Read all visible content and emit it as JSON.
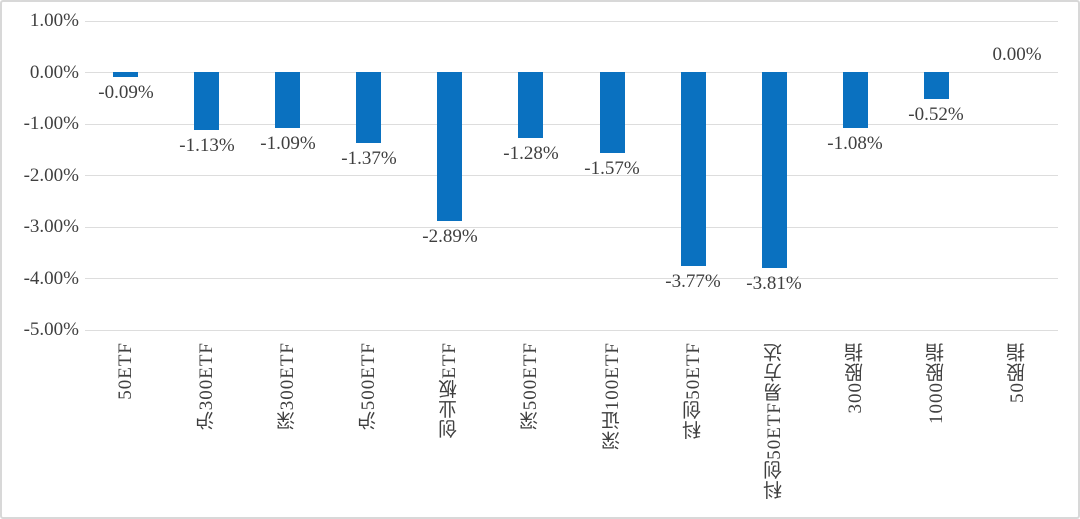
{
  "chart_data": {
    "type": "bar",
    "categories": [
      "50ETF",
      "沪300ETF",
      "深300ETF",
      "沪500ETF",
      "创业板ETF",
      "深500ETF",
      "深证100ETF",
      "科创50ETF",
      "科创50ETF易方达",
      "300股指",
      "1000股指",
      "50股指"
    ],
    "values": [
      -0.09,
      -1.13,
      -1.09,
      -1.37,
      -2.89,
      -1.28,
      -1.57,
      -3.77,
      -3.81,
      -1.08,
      -0.52,
      0.0
    ],
    "value_labels": [
      "-0.09%",
      "-1.13%",
      "-1.09%",
      "-1.37%",
      "-2.89%",
      "-1.28%",
      "-1.57%",
      "-3.77%",
      "-3.81%",
      "-1.08%",
      "-0.52%",
      "0.00%"
    ],
    "ytick_labels": [
      "1.00%",
      "0.00%",
      "-1.00%",
      "-2.00%",
      "-3.00%",
      "-4.00%",
      "-5.00%"
    ],
    "ytick_values": [
      1,
      0,
      -1,
      -2,
      -3,
      -4,
      -5
    ],
    "ylim": [
      -5,
      1
    ],
    "xlabel": "",
    "ylabel": "",
    "grid": "horizontal",
    "legend": "none",
    "colors": {
      "bar": "#0A71C0",
      "gridline": "#DDDDDD",
      "text": "#3F3F3F",
      "frame_border": "#D8D8D8",
      "background": "#FFFFFF"
    }
  }
}
